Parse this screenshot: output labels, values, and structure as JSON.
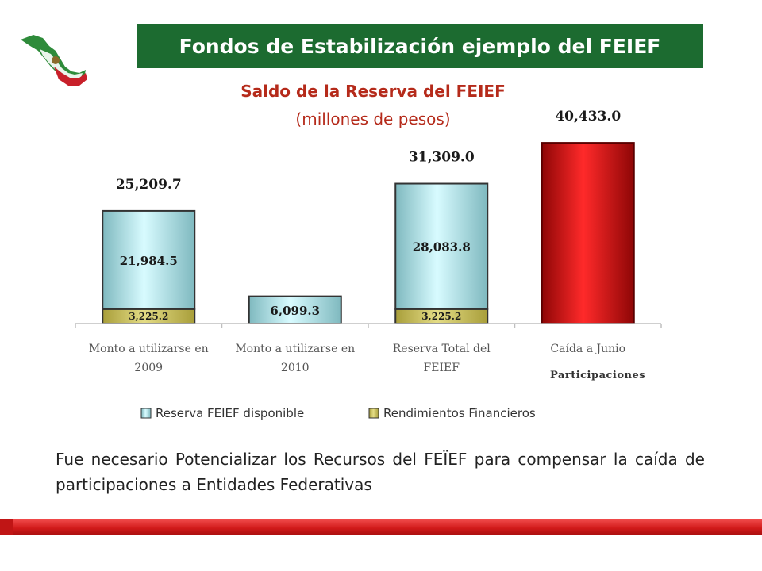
{
  "header": {
    "title": "Fondos de Estabilización ejemplo del  FEIEF"
  },
  "colors": {
    "title_bg": "#1c6b30",
    "chart_title": "#b52a1a",
    "reserva": "#a9e3e8",
    "rendimientos": "#c9c15c",
    "participaciones": "#d01010",
    "footer": "#d11a1a"
  },
  "chart_data": {
    "type": "bar",
    "title": "Saldo de la Reserva del FEIEF",
    "subtitle": "(millones de pesos)",
    "stacked": true,
    "categories": [
      [
        "Monto a utilizarse en",
        "2009"
      ],
      [
        "Monto a utilizarse en",
        "2010"
      ],
      [
        "Reserva Total del",
        "FEIEF"
      ],
      [
        "Caída a Junio"
      ]
    ],
    "series": [
      {
        "name": "Rendimientos  Financieros",
        "values": [
          3225.2,
          null,
          3225.2,
          null
        ],
        "labels": [
          "3,225.2",
          "",
          "3,225.2",
          ""
        ]
      },
      {
        "name": "Reserva FEIEF disponible",
        "values": [
          21984.5,
          6099.3,
          28083.8,
          null
        ],
        "labels": [
          "21,984.5",
          "6,099.3",
          "28,083.8",
          ""
        ]
      },
      {
        "name": "",
        "values": [
          null,
          null,
          null,
          40433.0
        ],
        "labels": [
          "",
          "",
          "",
          ""
        ]
      }
    ],
    "totals": [
      25209.7,
      null,
      31309.0,
      40433.0
    ],
    "total_labels": [
      "25,209.7",
      "",
      "31,309.0",
      "40,433.0"
    ],
    "annotation": "Participaciones",
    "legend": [
      "Reserva FEIEF disponible",
      "Rendimientos  Financieros"
    ],
    "legend_position": "bottom",
    "ylim": [
      0,
      44000
    ],
    "grid": false,
    "xlabel": "",
    "ylabel": ""
  },
  "note": "Fue necesario Potencializar los Recursos del FEÏEF para compensar la caída de participaciones a Entidades Federativas"
}
